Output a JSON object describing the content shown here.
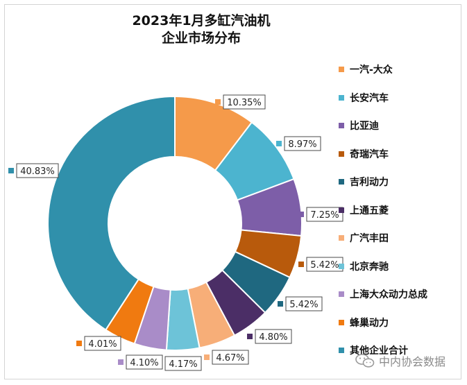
{
  "chart_data": {
    "type": "pie",
    "title": "2023年1月多缸汽油机",
    "subtitle": "企业市场分布",
    "categories": [
      "一汽-大众",
      "长安汽车",
      "比亚迪",
      "奇瑞汽车",
      "吉利动力",
      "上通五菱",
      "广汽丰田",
      "北京奔驰",
      "上海大众动力总成",
      "蜂巢动力",
      "其他企业合计"
    ],
    "values": [
      10.35,
      8.97,
      7.25,
      5.42,
      5.42,
      4.8,
      4.67,
      4.17,
      4.1,
      4.01,
      40.83
    ],
    "labels": [
      "10.35%",
      "8.97%",
      "7.25%",
      "5.42%",
      "5.42%",
      "4.80%",
      "4.67%",
      "4.17%",
      "4.10%",
      "4.01%",
      "40.83%"
    ],
    "colors": [
      "#f59a4a",
      "#4cb4cf",
      "#7d5ea8",
      "#b85a0c",
      "#1f6880",
      "#4b2e66",
      "#f7ae78",
      "#6dc3d8",
      "#a98cc8",
      "#f07a10",
      "#3090ab"
    ],
    "legend_position": "right",
    "donut": true
  },
  "watermark": {
    "text": "中内协会数据",
    "icon": "wechat-icon"
  }
}
